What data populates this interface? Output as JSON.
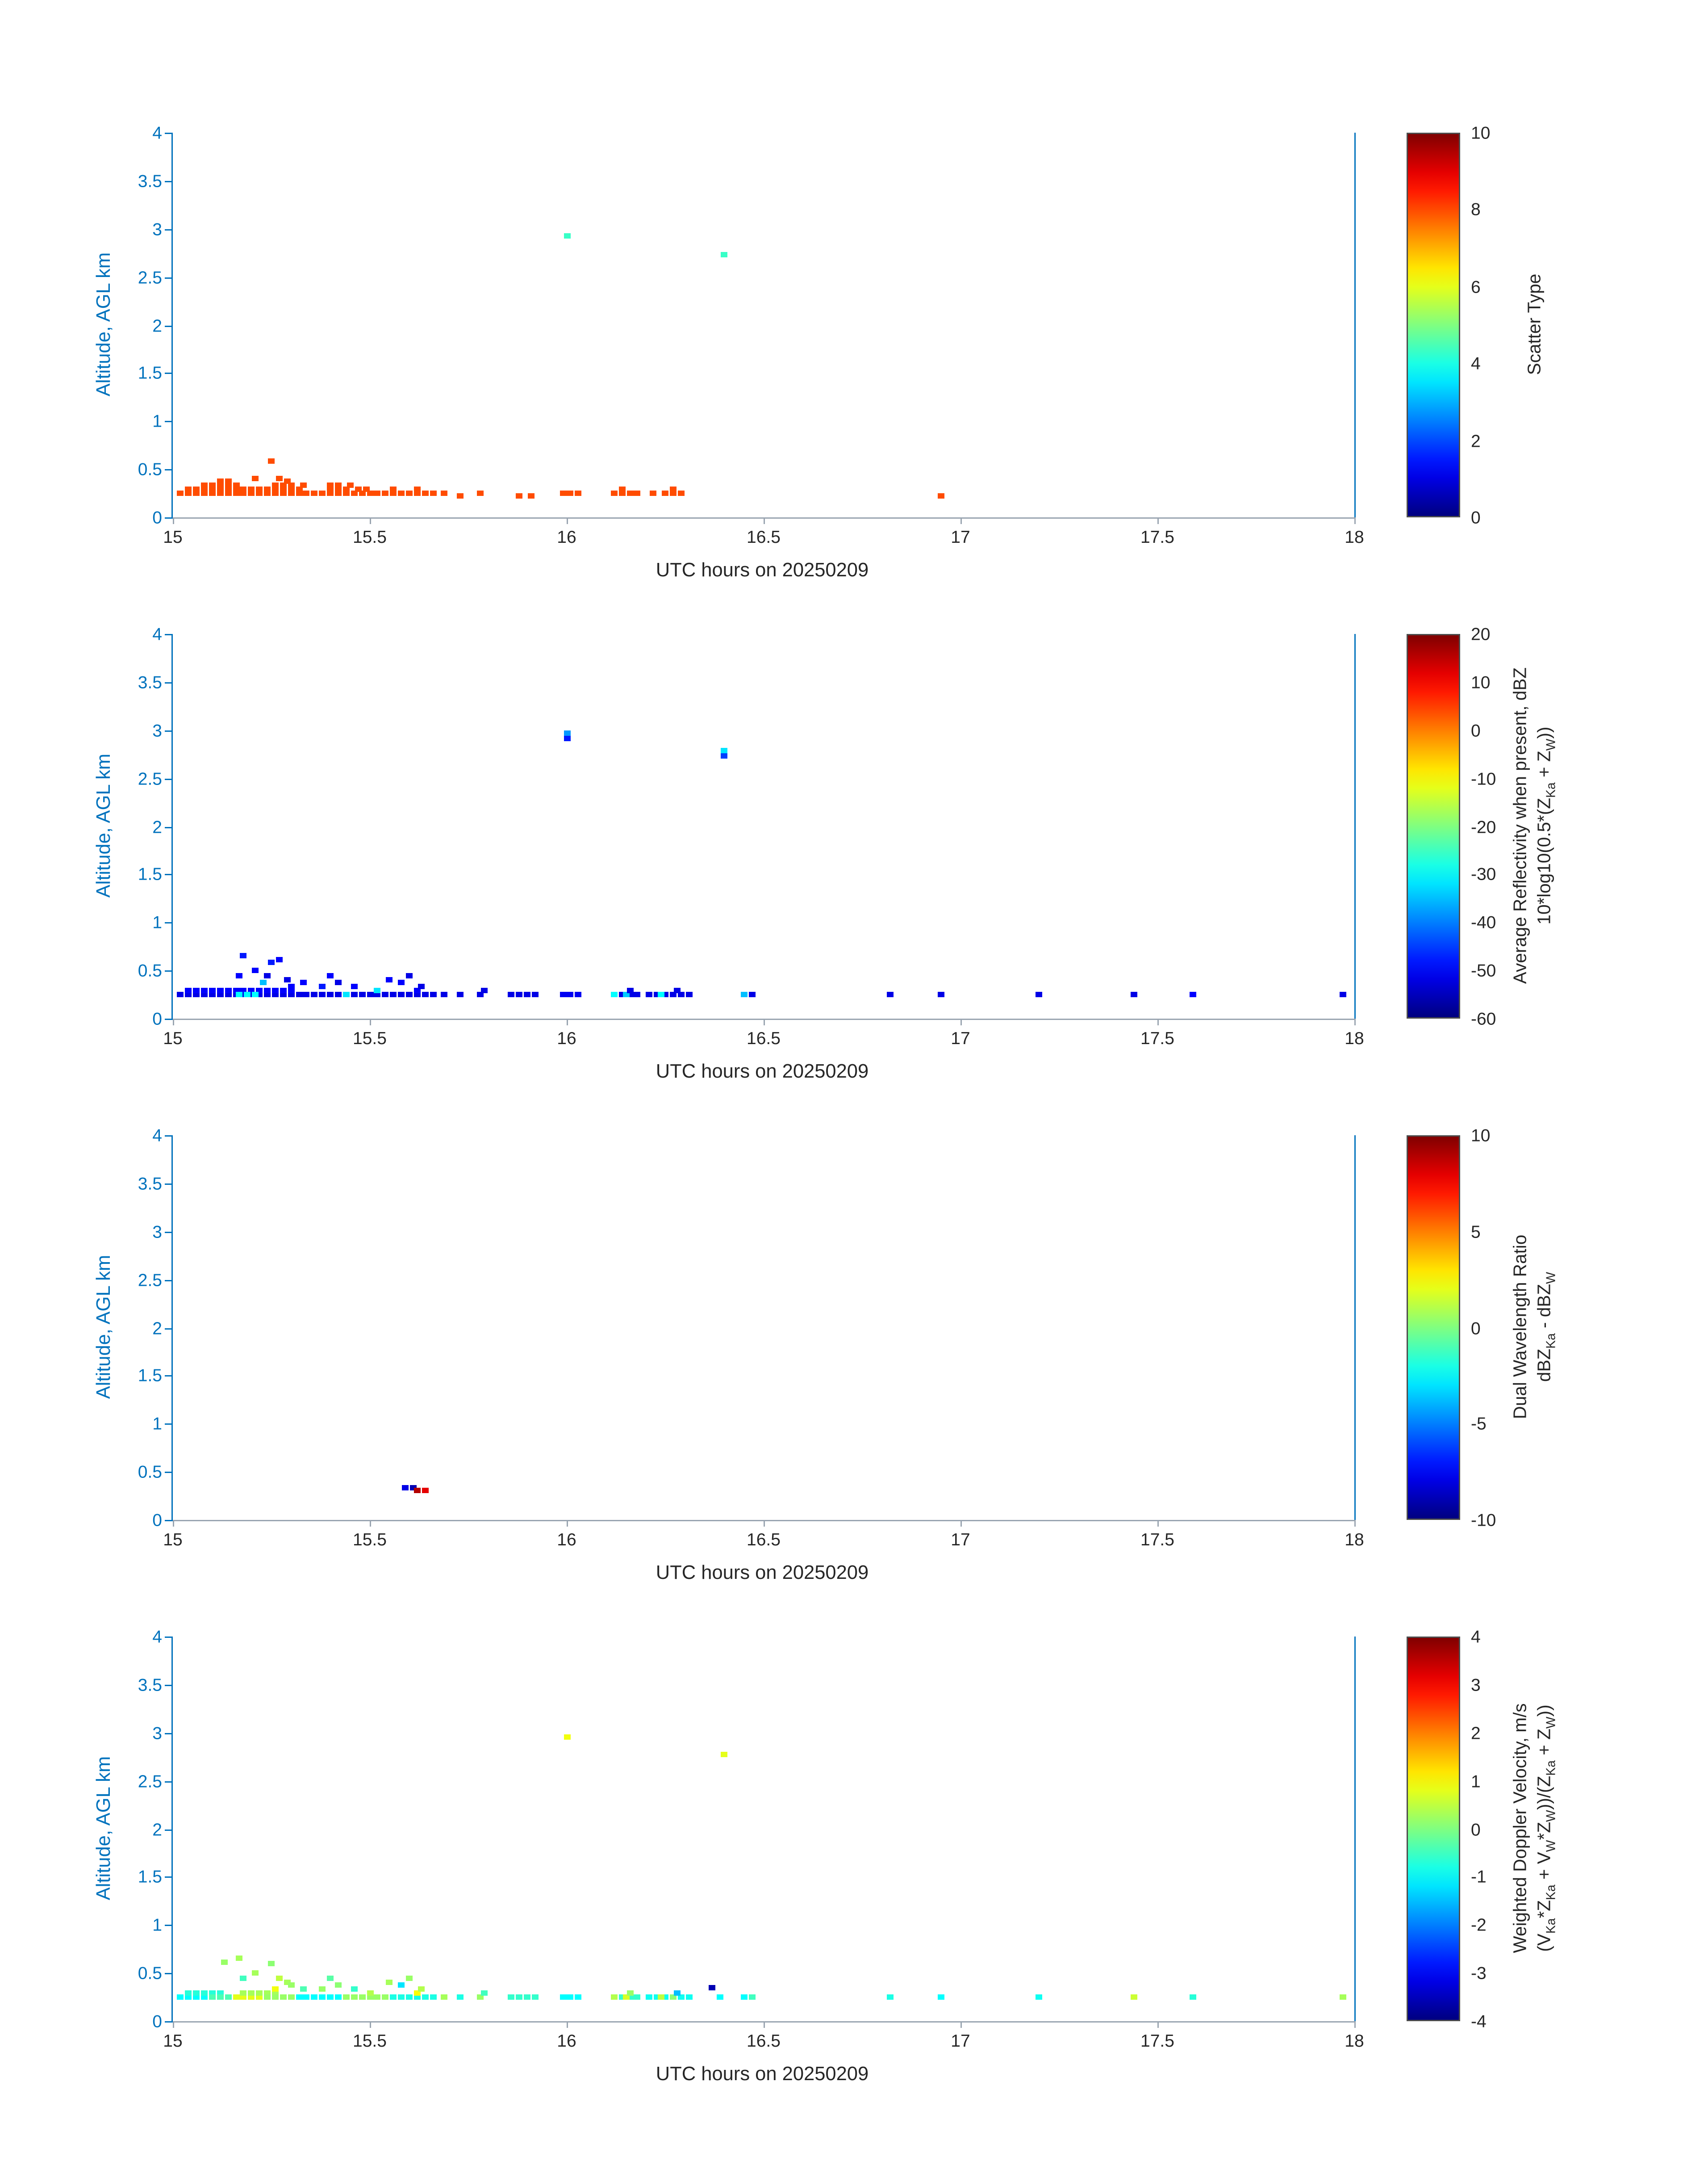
{
  "colors": {
    "axis_y_blue": "#0072BD",
    "axis_x_gray": "#9aa5b1",
    "x_text": "#262626",
    "colorbar_border": "#4d4d4d",
    "background": "#ffffff",
    "colormap": "jet"
  },
  "chart_data": [
    {
      "id": "scatter-type",
      "type": "scatter",
      "xlabel": "UTC hours on 20250209",
      "ylabel": "Altitude, AGL km",
      "xlim": [
        15,
        18
      ],
      "ylim": [
        0,
        4
      ],
      "xticks": [
        15,
        15.5,
        16,
        16.5,
        17,
        17.5,
        18
      ],
      "yticks": [
        0,
        0.5,
        1,
        1.5,
        2,
        2.5,
        3,
        3.5,
        4
      ],
      "colorbar": {
        "label_lines": [
          "Scatter Type"
        ],
        "ticks": [
          0,
          2,
          4,
          6,
          8,
          10
        ],
        "vmin": 0,
        "vmax": 10
      },
      "segments": [
        [
          15.02,
          15.36,
          0.25,
          8
        ],
        [
          15.04,
          15.32,
          0.29,
          8
        ],
        [
          15.08,
          15.16,
          0.33,
          8
        ],
        [
          15.12,
          15.15,
          0.37,
          8
        ],
        [
          15.26,
          15.31,
          0.33,
          8
        ],
        [
          15.38,
          15.52,
          0.25,
          8
        ],
        [
          15.4,
          15.44,
          0.29,
          8
        ],
        [
          15.47,
          15.5,
          0.29,
          8
        ],
        [
          15.54,
          15.58,
          0.25,
          8
        ],
        [
          15.6,
          15.66,
          0.25,
          8
        ],
        [
          16.12,
          16.18,
          0.25,
          8
        ],
        [
          16.25,
          16.3,
          0.25,
          8
        ]
      ],
      "points": [
        [
          15.21,
          0.41,
          8
        ],
        [
          15.25,
          0.58,
          8
        ],
        [
          15.27,
          0.41,
          8
        ],
        [
          15.29,
          0.37,
          8
        ],
        [
          15.33,
          0.33,
          8
        ],
        [
          15.4,
          0.33,
          8
        ],
        [
          15.42,
          0.33,
          8
        ],
        [
          15.45,
          0.33,
          8
        ],
        [
          15.56,
          0.29,
          8
        ],
        [
          15.62,
          0.29,
          8
        ],
        [
          15.69,
          0.25,
          8
        ],
        [
          15.73,
          0.22,
          8
        ],
        [
          15.78,
          0.25,
          8
        ],
        [
          15.88,
          0.22,
          8
        ],
        [
          15.91,
          0.22,
          8
        ],
        [
          15.99,
          0.25,
          8
        ],
        [
          16.01,
          0.25,
          8
        ],
        [
          16.03,
          0.25,
          8
        ],
        [
          16.14,
          0.29,
          8
        ],
        [
          16.22,
          0.25,
          8
        ],
        [
          16.27,
          0.29,
          8
        ],
        [
          16.95,
          0.22,
          8
        ],
        [
          16,
          2.92,
          4.3
        ],
        [
          16.4,
          2.73,
          4.3
        ]
      ]
    },
    {
      "id": "reflectivity",
      "type": "scatter",
      "xlabel": "UTC hours on 20250209",
      "ylabel": "Altitude, AGL km",
      "xlim": [
        15,
        18
      ],
      "ylim": [
        0,
        4
      ],
      "xticks": [
        15,
        15.5,
        16,
        16.5,
        17,
        17.5,
        18
      ],
      "yticks": [
        0,
        0.5,
        1,
        1.5,
        2,
        2.5,
        3,
        3.5,
        4
      ],
      "colorbar": {
        "label_lines": [
          "Average Reflectivity when present, dBZ",
          "10*log10(0.5*(Z_{Ka} + Z_{W}))"
        ],
        "ticks": [
          -60,
          -50,
          -40,
          -30,
          -20,
          -10,
          0,
          10,
          20
        ],
        "vmin": -60,
        "vmax": 20
      },
      "segments": [
        [
          15.02,
          15.36,
          0.25,
          -52
        ],
        [
          15.04,
          15.3,
          0.29,
          -50
        ],
        [
          15.17,
          15.22,
          0.25,
          -30
        ],
        [
          15.38,
          15.52,
          0.25,
          -52
        ],
        [
          15.54,
          15.66,
          0.25,
          -52
        ],
        [
          15.86,
          15.92,
          0.25,
          -52
        ],
        [
          15.99,
          16.04,
          0.25,
          -51
        ],
        [
          16.12,
          16.18,
          0.25,
          -52
        ],
        [
          16.21,
          16.31,
          0.25,
          -52
        ]
      ],
      "points": [
        [
          15.17,
          0.45,
          -50
        ],
        [
          15.18,
          0.65,
          -48
        ],
        [
          15.21,
          0.5,
          -50
        ],
        [
          15.23,
          0.37,
          -35
        ],
        [
          15.24,
          0.45,
          -52
        ],
        [
          15.25,
          0.58,
          -48
        ],
        [
          15.27,
          0.62,
          -50
        ],
        [
          15.29,
          0.41,
          -52
        ],
        [
          15.3,
          0.33,
          -50
        ],
        [
          15.33,
          0.37,
          -50
        ],
        [
          15.38,
          0.33,
          -48
        ],
        [
          15.4,
          0.45,
          -50
        ],
        [
          15.42,
          0.37,
          -52
        ],
        [
          15.44,
          0.25,
          -32
        ],
        [
          15.46,
          0.33,
          -50
        ],
        [
          15.52,
          0.29,
          -32
        ],
        [
          15.55,
          0.41,
          -50
        ],
        [
          15.58,
          0.37,
          -50
        ],
        [
          15.6,
          0.45,
          -52
        ],
        [
          15.62,
          0.29,
          -50
        ],
        [
          15.63,
          0.33,
          -52
        ],
        [
          15.69,
          0.25,
          -52
        ],
        [
          15.73,
          0.25,
          -52
        ],
        [
          15.78,
          0.25,
          -52
        ],
        [
          15.79,
          0.29,
          -52
        ],
        [
          16.12,
          0.25,
          -30
        ],
        [
          16.15,
          0.25,
          -34
        ],
        [
          16.16,
          0.29,
          -52
        ],
        [
          16.24,
          0.25,
          -30
        ],
        [
          16.28,
          0.29,
          -52
        ],
        [
          16,
          2.97,
          -38
        ],
        [
          16,
          2.91,
          -48
        ],
        [
          16.4,
          2.79,
          -32
        ],
        [
          16.4,
          2.73,
          -45
        ],
        [
          16.45,
          0.25,
          -35
        ],
        [
          16.47,
          0.25,
          -52
        ],
        [
          16.82,
          0.25,
          -52
        ],
        [
          16.95,
          0.25,
          -52
        ],
        [
          17.2,
          0.25,
          -52
        ],
        [
          17.44,
          0.25,
          -52
        ],
        [
          17.59,
          0.25,
          -50
        ],
        [
          17.97,
          0.25,
          -52
        ]
      ]
    },
    {
      "id": "dual-wavelength-ratio",
      "type": "scatter",
      "xlabel": "UTC hours on 20250209",
      "ylabel": "Altitude, AGL km",
      "xlim": [
        15,
        18
      ],
      "ylim": [
        0,
        4
      ],
      "xticks": [
        15,
        15.5,
        16,
        16.5,
        17,
        17.5,
        18
      ],
      "yticks": [
        0,
        0.5,
        1,
        1.5,
        2,
        2.5,
        3,
        3.5,
        4
      ],
      "colorbar": {
        "label_lines": [
          "Dual Wavelength Ratio",
          "dBZ_{Ka} - dBZ_{W}"
        ],
        "ticks": [
          -10,
          -5,
          0,
          5,
          10
        ],
        "vmin": -10,
        "vmax": 10
      },
      "segments": [],
      "points": [
        [
          15.59,
          0.33,
          -8
        ],
        [
          15.61,
          0.33,
          -9
        ],
        [
          15.62,
          0.31,
          9
        ],
        [
          15.64,
          0.31,
          8
        ]
      ]
    },
    {
      "id": "weighted-doppler-velocity",
      "type": "scatter",
      "xlabel": "UTC hours on 20250209",
      "ylabel": "Altitude, AGL km",
      "xlim": [
        15,
        18
      ],
      "ylim": [
        0,
        4
      ],
      "xticks": [
        15,
        15.5,
        16,
        16.5,
        17,
        17.5,
        18
      ],
      "yticks": [
        0,
        0.5,
        1,
        1.5,
        2,
        2.5,
        3,
        3.5,
        4
      ],
      "colorbar": {
        "label_lines": [
          "Weighted Doppler Velocity, m/s",
          "(V_{Ka}*Z_{Ka} + V_{W}*Z_{W}))/(Z_{Ka} + Z_{W}))"
        ],
        "ticks": [
          -4,
          -3,
          -2,
          -1,
          0,
          1,
          2,
          3,
          4
        ],
        "vmin": -4,
        "vmax": 4
      },
      "segments": [
        [
          15.02,
          15.1,
          0.25,
          -1
        ],
        [
          15.04,
          15.12,
          0.29,
          -0.7
        ],
        [
          15.1,
          15.16,
          0.25,
          -0.4
        ],
        [
          15.16,
          15.24,
          0.25,
          0.8
        ],
        [
          15.18,
          15.26,
          0.29,
          0.3
        ],
        [
          15.24,
          15.32,
          0.25,
          0.2
        ],
        [
          15.32,
          15.44,
          0.25,
          -1
        ],
        [
          15.44,
          15.56,
          0.25,
          0.2
        ],
        [
          15.56,
          15.66,
          0.25,
          -0.8
        ],
        [
          15.86,
          15.92,
          0.25,
          -0.6
        ],
        [
          15.99,
          16.04,
          0.25,
          -1
        ],
        [
          16.12,
          16.18,
          0.25,
          -0.6
        ],
        [
          16.21,
          16.31,
          0.25,
          -0.9
        ]
      ],
      "points": [
        [
          15.13,
          0.61,
          0.2
        ],
        [
          15.17,
          0.65,
          0.3
        ],
        [
          15.18,
          0.45,
          -0.5
        ],
        [
          15.21,
          0.5,
          0.3
        ],
        [
          15.25,
          0.6,
          0.1
        ],
        [
          15.26,
          0.33,
          0.9
        ],
        [
          15.27,
          0.45,
          0.5
        ],
        [
          15.29,
          0.41,
          0.3
        ],
        [
          15.3,
          0.37,
          0.2
        ],
        [
          15.33,
          0.33,
          -0.4
        ],
        [
          15.38,
          0.33,
          0.2
        ],
        [
          15.4,
          0.45,
          -0.3
        ],
        [
          15.42,
          0.37,
          0.1
        ],
        [
          15.46,
          0.33,
          -0.6
        ],
        [
          15.5,
          0.29,
          0.4
        ],
        [
          15.55,
          0.41,
          0.3
        ],
        [
          15.58,
          0.37,
          -1.2
        ],
        [
          15.6,
          0.45,
          0.2
        ],
        [
          15.62,
          0.29,
          1
        ],
        [
          15.63,
          0.33,
          0.4
        ],
        [
          15.69,
          0.25,
          0.3
        ],
        [
          15.73,
          0.25,
          -0.8
        ],
        [
          15.78,
          0.25,
          0.2
        ],
        [
          15.79,
          0.29,
          -0.5
        ],
        [
          16.12,
          0.25,
          0.4
        ],
        [
          16.15,
          0.25,
          0.7
        ],
        [
          16.16,
          0.29,
          0.2
        ],
        [
          16.24,
          0.25,
          0.5
        ],
        [
          16.27,
          0.25,
          0.1
        ],
        [
          16.28,
          0.29,
          -1.5
        ],
        [
          16.37,
          0.35,
          -3.6
        ],
        [
          16.39,
          0.25,
          -1
        ],
        [
          16,
          2.95,
          0.9
        ],
        [
          16.4,
          2.77,
          0.8
        ],
        [
          16.45,
          0.25,
          -1
        ],
        [
          16.47,
          0.25,
          -0.5
        ],
        [
          16.82,
          0.25,
          -0.8
        ],
        [
          16.95,
          0.25,
          -1
        ],
        [
          17.2,
          0.25,
          -0.9
        ],
        [
          17.44,
          0.25,
          0.6
        ],
        [
          17.59,
          0.25,
          -0.7
        ],
        [
          17.97,
          0.25,
          0.3
        ]
      ]
    }
  ]
}
